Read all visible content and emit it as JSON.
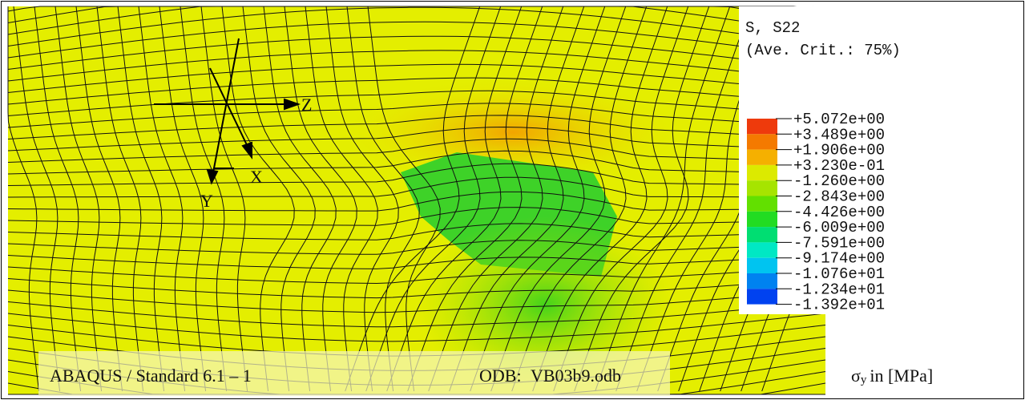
{
  "legend": {
    "title": "S, S22",
    "subtitle": "(Ave. Crit.: 75%)",
    "labels": [
      "+5.072e+00",
      "+3.489e+00",
      "+1.906e+00",
      "+3.230e-01",
      "-1.260e+00",
      "-2.843e+00",
      "-4.426e+00",
      "-6.009e+00",
      "-7.591e+00",
      "-9.174e+00",
      "-1.076e+01",
      "-1.234e+01",
      "-1.392e+01"
    ],
    "colors": [
      "#ee3a0c",
      "#f47a00",
      "#f5b000",
      "#dcea00",
      "#a6e400",
      "#62e000",
      "#22dc22",
      "#00de72",
      "#00e8c4",
      "#00c4f0",
      "#0082f0",
      "#0042f0"
    ]
  },
  "triad": {
    "z": "Z",
    "x": "X",
    "y": "Y"
  },
  "footer": {
    "product": "ABAQUS / Standard 6.1 – 1",
    "odb_label": "ODB:",
    "odb_file": "VB03b9.odb"
  },
  "quantity": {
    "symbol": "σ",
    "subscript": "y",
    "unit": "in [MPa]"
  }
}
